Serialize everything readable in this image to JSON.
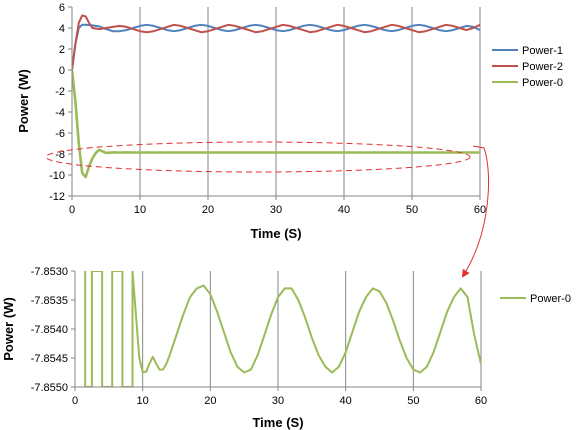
{
  "chart_data": [
    {
      "type": "line",
      "xlabel": "Time (S)",
      "ylabel": "Power (W)",
      "xlim": [
        0,
        60
      ],
      "ylim": [
        -12,
        6
      ],
      "xticks": [
        0,
        10,
        20,
        30,
        40,
        50,
        60
      ],
      "yticks": [
        6,
        4,
        2,
        0,
        -2,
        -4,
        -6,
        -8,
        -10,
        -12
      ],
      "grid": "vertical",
      "legend_position": "right",
      "series": [
        {
          "name": "Power-1",
          "color": "#4f81bd",
          "x": [
            0,
            0.5,
            1,
            1.5,
            2,
            3,
            4,
            5,
            6,
            7,
            8,
            9,
            10,
            11,
            12,
            13,
            14,
            15,
            16,
            17,
            18,
            19,
            20,
            21,
            22,
            23,
            24,
            25,
            26,
            27,
            28,
            29,
            30,
            31,
            32,
            33,
            34,
            35,
            36,
            37,
            38,
            39,
            40,
            41,
            42,
            43,
            44,
            45,
            46,
            47,
            48,
            49,
            50,
            51,
            52,
            53,
            54,
            55,
            56,
            57,
            58,
            59,
            60
          ],
          "y": [
            0,
            2.5,
            4.0,
            4.3,
            4.3,
            4.25,
            4.15,
            3.9,
            3.7,
            3.7,
            3.8,
            4.0,
            4.2,
            4.3,
            4.2,
            4.0,
            3.8,
            3.7,
            3.8,
            4.0,
            4.2,
            4.3,
            4.2,
            4.0,
            3.8,
            3.7,
            3.8,
            4.0,
            4.2,
            4.3,
            4.2,
            4.0,
            3.8,
            3.7,
            3.8,
            4.0,
            4.2,
            4.3,
            4.2,
            4.0,
            3.8,
            3.7,
            3.8,
            4.0,
            4.2,
            4.3,
            4.2,
            4.0,
            3.8,
            3.7,
            3.8,
            4.0,
            4.2,
            4.3,
            4.2,
            4.0,
            3.8,
            3.7,
            3.8,
            4.0,
            4.2,
            4.1,
            3.8
          ]
        },
        {
          "name": "Power-2",
          "color": "#c0504d",
          "x": [
            0,
            0.5,
            1,
            1.5,
            2,
            2.5,
            3,
            4,
            5,
            6,
            7,
            8,
            9,
            10,
            11,
            12,
            13,
            14,
            15,
            16,
            17,
            18,
            19,
            20,
            21,
            22,
            23,
            24,
            25,
            26,
            27,
            28,
            29,
            30,
            31,
            32,
            33,
            34,
            35,
            36,
            37,
            38,
            39,
            40,
            41,
            42,
            43,
            44,
            45,
            46,
            47,
            48,
            49,
            50,
            51,
            52,
            53,
            54,
            55,
            56,
            57,
            58,
            59,
            60
          ],
          "y": [
            0,
            2.5,
            4.5,
            5.2,
            5.1,
            4.5,
            4.0,
            3.9,
            4.0,
            4.1,
            4.2,
            4.1,
            3.9,
            3.7,
            3.6,
            3.7,
            3.9,
            4.1,
            4.3,
            4.2,
            4.0,
            3.8,
            3.6,
            3.7,
            3.9,
            4.1,
            4.3,
            4.2,
            4.0,
            3.8,
            3.6,
            3.7,
            3.9,
            4.1,
            4.3,
            4.2,
            4.0,
            3.8,
            3.6,
            3.7,
            3.9,
            4.1,
            4.3,
            4.2,
            4.0,
            3.8,
            3.6,
            3.7,
            3.9,
            4.1,
            4.3,
            4.2,
            4.0,
            3.8,
            3.6,
            3.7,
            3.9,
            4.1,
            4.3,
            4.2,
            4.0,
            3.8,
            4.0,
            4.3
          ]
        },
        {
          "name": "Power-0",
          "color": "#9bbb59",
          "x": [
            0,
            0.5,
            1,
            1.5,
            2,
            2.5,
            3,
            3.5,
            4,
            5,
            6,
            7,
            8,
            10,
            20,
            30,
            40,
            50,
            60
          ],
          "y": [
            0,
            -3,
            -7,
            -9.8,
            -10.2,
            -9.2,
            -8.4,
            -7.9,
            -7.6,
            -7.9,
            -7.85,
            -7.86,
            -7.85,
            -7.854,
            -7.854,
            -7.854,
            -7.854,
            -7.854,
            -7.854
          ]
        }
      ]
    },
    {
      "type": "line",
      "xlabel": "Time (S)",
      "ylabel": "Power (W)",
      "xlim": [
        0,
        60
      ],
      "ylim": [
        -7.855,
        -7.853
      ],
      "xticks": [
        0,
        10,
        20,
        30,
        40,
        50,
        60
      ],
      "yticks": [
        "-7.8530",
        "-7.8535",
        "-7.8540",
        "-7.8545",
        "-7.8550"
      ],
      "ytick_values": [
        -7.853,
        -7.8535,
        -7.854,
        -7.8545,
        -7.855
      ],
      "grid": "vertical",
      "legend_position": "right",
      "series": [
        {
          "name": "Power-0",
          "color": "#9bbb59",
          "x": [
            1.5,
            1.5,
            2.5,
            2.5,
            4.0,
            4.0,
            5.5,
            5.5,
            7.0,
            7.0,
            8.5,
            8.5,
            9.5,
            10,
            10.5,
            11,
            11.5,
            12,
            12.5,
            13,
            13.5,
            14,
            15,
            16,
            17,
            18,
            19,
            20,
            21,
            22,
            23,
            24,
            25,
            26,
            27,
            28,
            29,
            30,
            31,
            32,
            33,
            34,
            35,
            36,
            37,
            38,
            39,
            40,
            41,
            42,
            43,
            44,
            45,
            46,
            47,
            48,
            49,
            50,
            51,
            52,
            53,
            54,
            55,
            56,
            57,
            58,
            59,
            60
          ],
          "y": [
            -7.853,
            -7.855,
            -7.855,
            -7.853,
            -7.853,
            -7.855,
            -7.855,
            -7.853,
            -7.853,
            -7.855,
            -7.855,
            -7.853,
            -7.8545,
            -7.85474,
            -7.85474,
            -7.8546,
            -7.85448,
            -7.8546,
            -7.8547,
            -7.8547,
            -7.8546,
            -7.85445,
            -7.8541,
            -7.85375,
            -7.85345,
            -7.8533,
            -7.85325,
            -7.8534,
            -7.8537,
            -7.85405,
            -7.8544,
            -7.85465,
            -7.85475,
            -7.8547,
            -7.85445,
            -7.8541,
            -7.85375,
            -7.85345,
            -7.8533,
            -7.8533,
            -7.8535,
            -7.8538,
            -7.85415,
            -7.85445,
            -7.85465,
            -7.85475,
            -7.85465,
            -7.8544,
            -7.85405,
            -7.8537,
            -7.85345,
            -7.8533,
            -7.85335,
            -7.85355,
            -7.85385,
            -7.8542,
            -7.8545,
            -7.8547,
            -7.85475,
            -7.85465,
            -7.8544,
            -7.85405,
            -7.8537,
            -7.85345,
            -7.8533,
            -7.85345,
            -7.8541,
            -7.8546
          ]
        }
      ]
    }
  ]
}
